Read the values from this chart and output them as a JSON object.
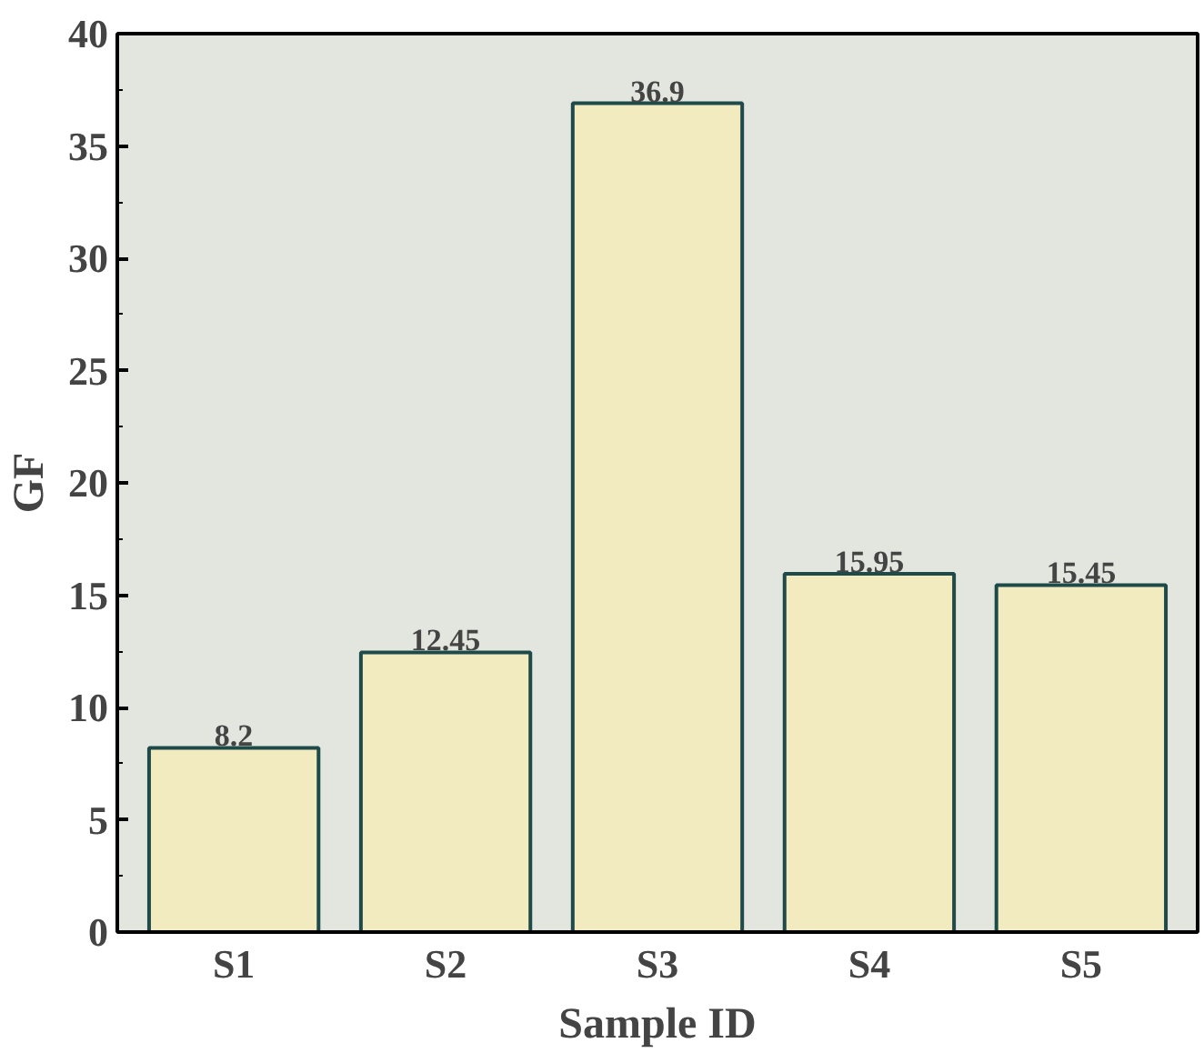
{
  "chart_data": {
    "type": "bar",
    "xlabel": "Sample ID",
    "ylabel": "GF",
    "categories": [
      "S1",
      "S2",
      "S3",
      "S4",
      "S5"
    ],
    "values": [
      8.2,
      12.45,
      36.9,
      15.95,
      15.45
    ],
    "color": "#f3ebc0",
    "ylim": [
      0,
      40
    ],
    "yticks": [
      0,
      5,
      10,
      15,
      20,
      25,
      30,
      35,
      40
    ],
    "data_labels": true,
    "grid": false
  }
}
